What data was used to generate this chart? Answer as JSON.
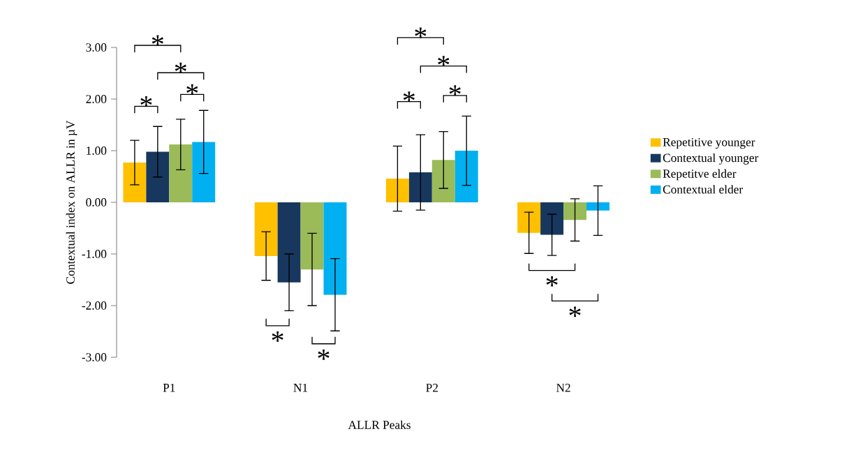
{
  "chart_data": {
    "type": "bar",
    "xlabel": "ALLR Peaks",
    "ylabel": "Contextual index on ALLR in µV",
    "categories": [
      "P1",
      "N1",
      "P2",
      "N2"
    ],
    "series": [
      {
        "name": "Repetitive younger",
        "color": "#ffc000",
        "values": [
          0.77,
          -1.04,
          0.46,
          -0.59
        ],
        "errors": [
          0.43,
          0.47,
          0.63,
          0.4
        ]
      },
      {
        "name": "Contextual younger",
        "color": "#17375e",
        "values": [
          0.98,
          -1.55,
          0.58,
          -0.63
        ],
        "errors": [
          0.49,
          0.55,
          0.73,
          0.4
        ]
      },
      {
        "name": "Repetitve elder",
        "color": "#9bbb59",
        "values": [
          1.12,
          -1.3,
          0.82,
          -0.34
        ],
        "errors": [
          0.49,
          0.7,
          0.55,
          0.41
        ]
      },
      {
        "name": "Contextual elder",
        "color": "#00b0f0",
        "values": [
          1.17,
          -1.79,
          1.0,
          -0.16
        ],
        "errors": [
          0.61,
          0.7,
          0.67,
          0.48
        ]
      }
    ],
    "ylim": [
      -3,
      3
    ],
    "yticks": [
      {
        "value": -3,
        "label": "-3.00"
      },
      {
        "value": -2,
        "label": "-2.00"
      },
      {
        "value": -1,
        "label": "-1.00"
      },
      {
        "value": 0,
        "label": "0.00"
      },
      {
        "value": 1,
        "label": "1.00"
      },
      {
        "value": 2,
        "label": "2.00"
      },
      {
        "value": 3,
        "label": "3.00"
      }
    ],
    "legend": "right",
    "grid": false,
    "annotations": [
      "*",
      "*",
      "*",
      "*",
      "*",
      "*",
      "*",
      "*",
      "*",
      "*",
      "*",
      "*"
    ]
  }
}
